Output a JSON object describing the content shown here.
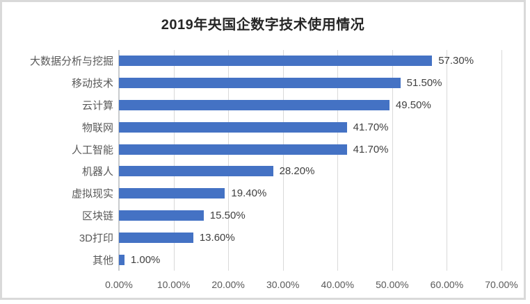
{
  "chart_data": {
    "type": "bar",
    "orientation": "horizontal",
    "title": "2019年央国企数字技术使用情况",
    "categories": [
      "大数据分析与挖掘",
      "移动技术",
      "云计算",
      "物联网",
      "人工智能",
      "机器人",
      "虚拟现实",
      "区块链",
      "3D打印",
      "其他"
    ],
    "values": [
      57.3,
      51.5,
      49.5,
      41.7,
      41.7,
      28.2,
      19.4,
      15.5,
      13.6,
      1.0
    ],
    "value_labels": [
      "57.30%",
      "51.50%",
      "49.50%",
      "41.70%",
      "41.70%",
      "28.20%",
      "19.40%",
      "15.50%",
      "13.60%",
      "1.00%"
    ],
    "xlabel": "",
    "ylabel": "",
    "xlim": [
      0,
      70
    ],
    "x_tick_labels": [
      "0.00%",
      "10.00%",
      "20.00%",
      "30.00%",
      "40.00%",
      "50.00%",
      "60.00%",
      "70.00%"
    ],
    "grid": true,
    "legend": false,
    "data_labels": true
  },
  "colors": {
    "bar": "#4472c4",
    "gridline": "#d9d9d9",
    "axis_line": "#c8cbce",
    "frame_border": "#d9d9d9",
    "title_text": "#262626",
    "category_text": "#595959",
    "value_text": "#404040",
    "tick_text": "#595959",
    "background": "#ffffff"
  }
}
